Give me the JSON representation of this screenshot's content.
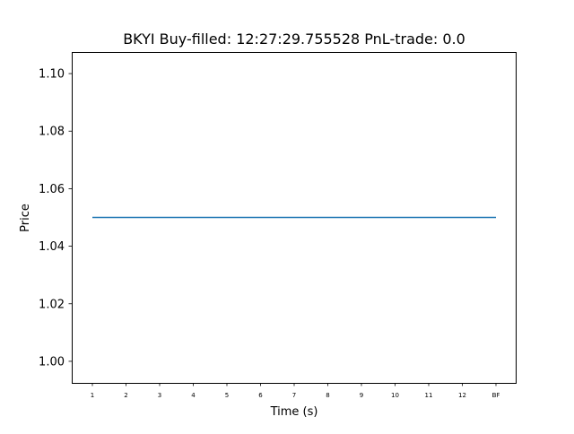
{
  "chart_data": {
    "type": "line",
    "title": "BKYI  Buy-filled:  12:27:29.755528  PnL-trade:  0.0",
    "xlabel": "Time (s)",
    "ylabel": "Price",
    "categories": [
      "1",
      "2",
      "3",
      "4",
      "5",
      "6",
      "7",
      "8",
      "9",
      "10",
      "11",
      "12",
      "BF"
    ],
    "series": [
      {
        "values": [
          1.05,
          1.05,
          1.05,
          1.05,
          1.05,
          1.05,
          1.05,
          1.05,
          1.05,
          1.05,
          1.05,
          1.05,
          1.05
        ],
        "color": "#1f77b4"
      }
    ],
    "ylim": [
      0.9925,
      1.1075
    ],
    "yticks": [
      1.0,
      1.02,
      1.04,
      1.06,
      1.08,
      1.1
    ],
    "ytick_labels": [
      "1.00",
      "1.02",
      "1.04",
      "1.06",
      "1.08",
      "1.10"
    ],
    "grid": false,
    "legend": "none"
  }
}
